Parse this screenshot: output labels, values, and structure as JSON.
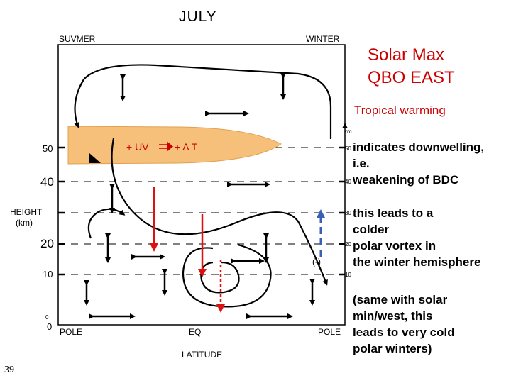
{
  "title": "JULY",
  "heading": {
    "line1": "Solar Max",
    "line2": "QBO EAST",
    "subtitle": "Tropical warming"
  },
  "notes": {
    "downwelling": [
      "indicates downwelling,",
      "i.e.",
      "weakening of BDC"
    ],
    "vortex": [
      "this leads to a",
      "colder",
      "polar vortex in",
      "the winter hemisphere"
    ],
    "solar_min": [
      "(same with solar",
      "min/west, this",
      "leads to very cold",
      "polar winters)"
    ]
  },
  "diagram": {
    "top_left": "SUVMER",
    "top_right": "WINTER",
    "height_axis": [
      "HEIGHT",
      "(km)"
    ],
    "height_ticks": [
      "50",
      "40",
      "20",
      "10",
      "0",
      "0"
    ],
    "latitude_ticks": [
      "POLE",
      "EQ",
      "POLE"
    ],
    "latitude_label": "LATITUDE",
    "right_km": "km",
    "right_ticks": [
      "50",
      "40",
      "30",
      "20",
      "10"
    ],
    "uv_label": "+ UV",
    "dt_label": "+ Δ T",
    "minus_label": "(-)",
    "colors": {
      "warming_band": "#f7c07a",
      "red_arrow": "#dd1111",
      "blue_arrow": "#3a5fb5",
      "black": "#000000"
    }
  },
  "page_number": "39"
}
